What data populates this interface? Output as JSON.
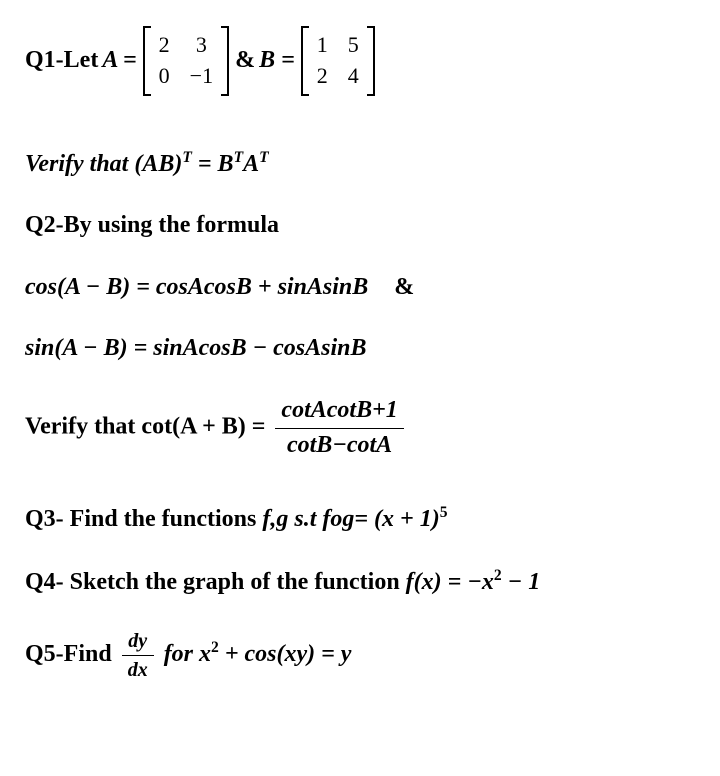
{
  "q1": {
    "prefix": "Q1-Let ",
    "Aeq": "A =",
    "matA": [
      [
        "2",
        "3"
      ],
      [
        "0",
        "−1"
      ]
    ],
    "amp": " & ",
    "Beq": "B =",
    "matB": [
      [
        "1",
        "5"
      ],
      [
        "2",
        "4"
      ]
    ]
  },
  "verify1": "Verify that (AB)",
  "verify1_sup": "T",
  "verify1_mid": " = B",
  "verify1_sup2": "T",
  "verify1_mid2": "A",
  "verify1_sup3": "T",
  "q2_title": "Q2-By using the formula",
  "cos_line": "cos(A − B) = cosAcosB + sinAsinB",
  "cos_amp": "&",
  "sin_line": "sin(A − B) = sinAcosB − cosAsinB",
  "verify2_lead": "Verify that  cot(A + B) = ",
  "verify2_num": "cotAcotB+1",
  "verify2_den": "cotB−cotA",
  "q3_a": "Q3- Find the functions ",
  "q3_b": "f,g  s.t fog= (x + 1)",
  "q3_sup": "5",
  "q4_a": "Q4- Sketch the graph of the function ",
  "q4_b": "f(x) = −x",
  "q4_sup": "2",
  "q4_c": " − 1",
  "q5_a": "Q5-Find ",
  "q5_num": "dy",
  "q5_den": "dx",
  "q5_b": " for   x",
  "q5_sup": "2",
  "q5_c": " + cos(xy) = y",
  "colors": {
    "bg": "#ffffff",
    "text": "#000000"
  }
}
